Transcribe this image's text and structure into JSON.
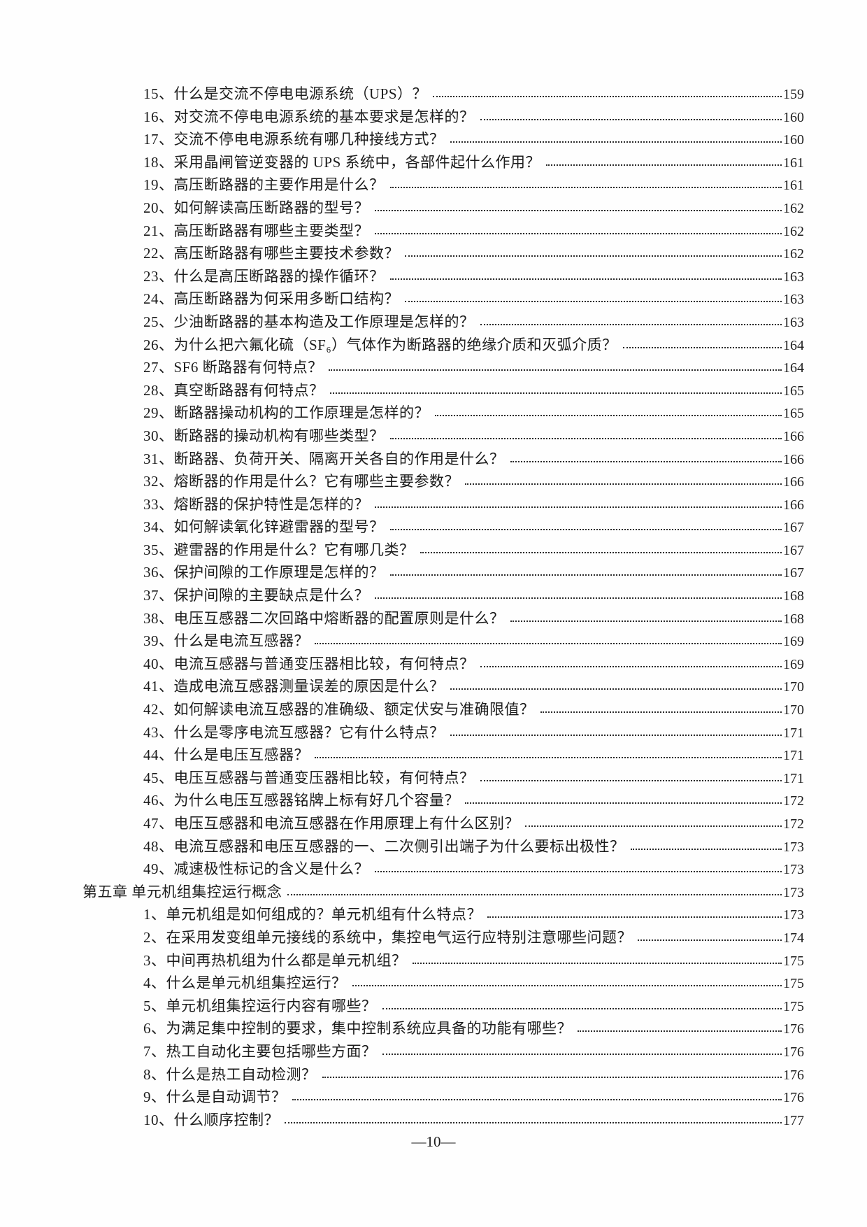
{
  "footer": {
    "page_label": "—10—"
  },
  "toc": {
    "entries": [
      {
        "level": "entry",
        "label": "15、什么是交流不停电电源系统（UPS）？",
        "page": "159"
      },
      {
        "level": "entry",
        "label": "16、对交流不停电电源系统的基本要求是怎样的？",
        "page": "160"
      },
      {
        "level": "entry",
        "label": "17、交流不停电电源系统有哪几种接线方式？",
        "page": "160"
      },
      {
        "level": "entry",
        "label": "18、采用晶闸管逆变器的 UPS 系统中，各部件起什么作用？",
        "page": "161"
      },
      {
        "level": "entry",
        "label": "19、高压断路器的主要作用是什么？",
        "page": "161"
      },
      {
        "level": "entry",
        "label": "20、如何解读高压断路器的型号？",
        "page": "162"
      },
      {
        "level": "entry",
        "label": "21、高压断路器有哪些主要类型？",
        "page": "162"
      },
      {
        "level": "entry",
        "label": "22、高压断路器有哪些主要技术参数？",
        "page": "162"
      },
      {
        "level": "entry",
        "label": "23、什么是高压断路器的操作循环？",
        "page": "163"
      },
      {
        "level": "entry",
        "label": "24、高压断路器为何采用多断口结构？",
        "page": "163"
      },
      {
        "level": "entry",
        "label": "25、少油断路器的基本构造及工作原理是怎样的？",
        "page": "163"
      },
      {
        "level": "entry",
        "label": "26、为什么把六氟化硫（SF₆）气体作为断路器的绝缘介质和灭弧介质？",
        "page": "164"
      },
      {
        "level": "entry",
        "label": "27、SF6 断路器有何特点？",
        "page": "164"
      },
      {
        "level": "entry",
        "label": "28、真空断路器有何特点？",
        "page": "165"
      },
      {
        "level": "entry",
        "label": "29、断路器操动机构的工作原理是怎样的？",
        "page": "165"
      },
      {
        "level": "entry",
        "label": "30、断路器的操动机构有哪些类型？",
        "page": "166"
      },
      {
        "level": "entry",
        "label": "31、断路器、负荷开关、隔离开关各自的作用是什么？",
        "page": "166"
      },
      {
        "level": "entry",
        "label": "32、熔断器的作用是什么？它有哪些主要参数？",
        "page": "166"
      },
      {
        "level": "entry",
        "label": "33、熔断器的保护特性是怎样的？",
        "page": "166"
      },
      {
        "level": "entry",
        "label": "34、如何解读氧化锌避雷器的型号？",
        "page": "167"
      },
      {
        "level": "entry",
        "label": "35、避雷器的作用是什么？它有哪几类？",
        "page": "167"
      },
      {
        "level": "entry",
        "label": "36、保护间隙的工作原理是怎样的？",
        "page": "167"
      },
      {
        "level": "entry",
        "label": "37、保护间隙的主要缺点是什么？",
        "page": "168"
      },
      {
        "level": "entry",
        "label": "38、电压互感器二次回路中熔断器的配置原则是什么？",
        "page": "168"
      },
      {
        "level": "entry",
        "label": "39、什么是电流互感器？",
        "page": "169"
      },
      {
        "level": "entry",
        "label": "40、电流互感器与普通变压器相比较，有何特点？",
        "page": "169"
      },
      {
        "level": "entry",
        "label": "41、造成电流互感器测量误差的原因是什么？",
        "page": "170"
      },
      {
        "level": "entry",
        "label": "42、如何解读电流互感器的准确级、额定伏安与准确限值？",
        "page": "170"
      },
      {
        "level": "entry",
        "label": "43、什么是零序电流互感器？它有什么特点？",
        "page": "171"
      },
      {
        "level": "entry",
        "label": "44、什么是电压互感器？",
        "page": "171"
      },
      {
        "level": "entry",
        "label": "45、电压互感器与普通变压器相比较，有何特点？",
        "page": "171"
      },
      {
        "level": "entry",
        "label": "46、为什么电压互感器铭牌上标有好几个容量？",
        "page": "172"
      },
      {
        "level": "entry",
        "label": "47、电压互感器和电流互感器在作用原理上有什么区别？",
        "page": "172"
      },
      {
        "level": "entry",
        "label": "48、电流互感器和电压互感器的一、二次侧引出端子为什么要标出极性？",
        "page": "173"
      },
      {
        "level": "entry",
        "label": "49、减速极性标记的含义是什么？",
        "page": "173"
      },
      {
        "level": "chapter",
        "label": "第五章 单元机组集控运行概念",
        "page": "173"
      },
      {
        "level": "entry",
        "label": "1、单元机组是如何组成的？单元机组有什么特点？",
        "page": "173"
      },
      {
        "level": "entry",
        "label": "2、在采用发变组单元接线的系统中，集控电气运行应特别注意哪些问题？",
        "page": "174"
      },
      {
        "level": "entry",
        "label": "3、中间再热机组为什么都是单元机组？",
        "page": "175"
      },
      {
        "level": "entry",
        "label": "4、什么是单元机组集控运行？",
        "page": "175"
      },
      {
        "level": "entry",
        "label": "5、单元机组集控运行内容有哪些？",
        "page": "175"
      },
      {
        "level": "entry",
        "label": "6、为满足集中控制的要求，集中控制系统应具备的功能有哪些？",
        "page": "176"
      },
      {
        "level": "entry",
        "label": "7、热工自动化主要包括哪些方面？",
        "page": "176"
      },
      {
        "level": "entry",
        "label": "8、什么是热工自动检测？",
        "page": "176"
      },
      {
        "level": "entry",
        "label": "9、什么是自动调节？",
        "page": "176"
      },
      {
        "level": "entry",
        "label": "10、什么顺序控制？",
        "page": "177"
      }
    ]
  }
}
